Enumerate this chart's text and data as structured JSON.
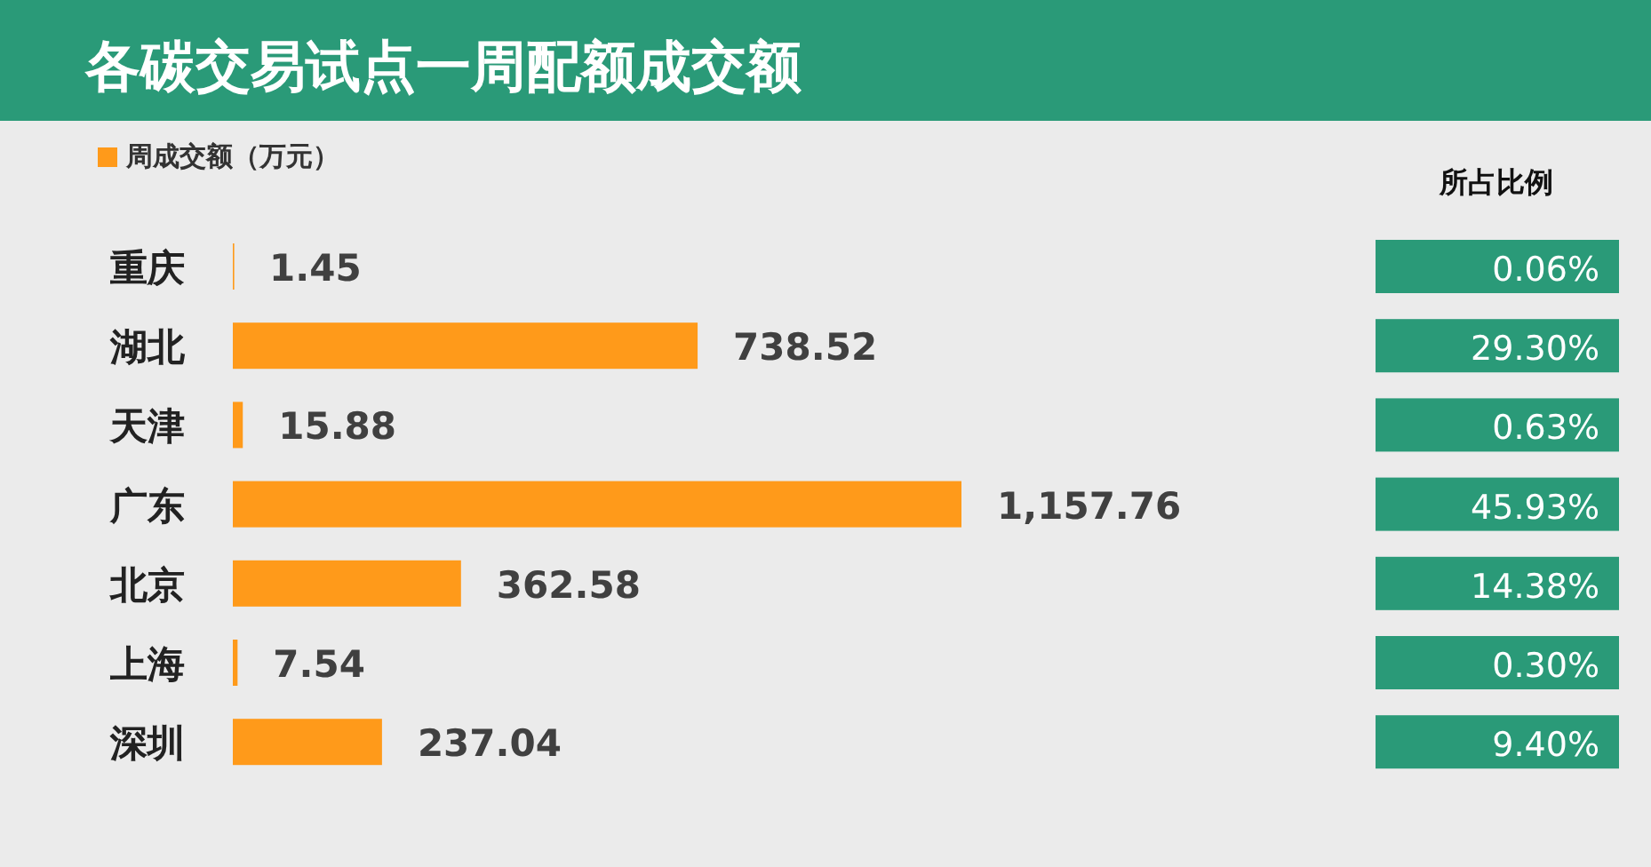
{
  "chart_data": [
    {
      "type": "bar",
      "orientation": "horizontal",
      "title": "各碳交易试点一周配额成交额",
      "categories": [
        "重庆",
        "湖北",
        "天津",
        "广东",
        "北京",
        "上海",
        "深圳"
      ],
      "series": [
        {
          "name": "周成交额（万元）",
          "color": "#ff9a1a",
          "values": [
            1.45,
            738.52,
            15.88,
            1157.76,
            362.58,
            7.54,
            237.04
          ],
          "value_labels": [
            "1.45",
            "738.52",
            "15.88",
            "1,157.76",
            "362.58",
            "7.54",
            "237.04"
          ]
        }
      ],
      "legend": "top left"
    },
    {
      "type": "other",
      "title": "所占比例",
      "color": "#2a9a78",
      "values": [
        0.06,
        29.3,
        0.63,
        45.93,
        14.38,
        0.3,
        9.4
      ],
      "value_labels": [
        "0.06%",
        "29.30%",
        "0.63%",
        "45.93%",
        "14.38%",
        "0.30%",
        "9.40%"
      ]
    }
  ]
}
